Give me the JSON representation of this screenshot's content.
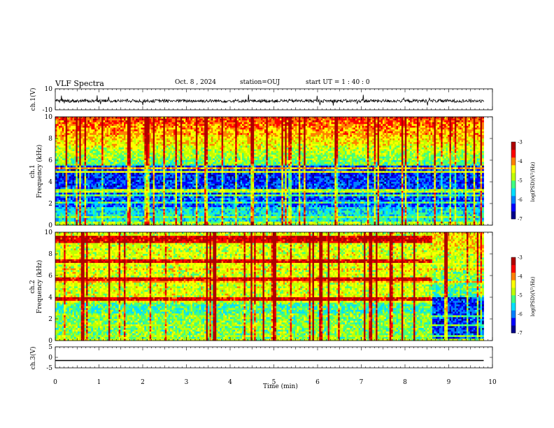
{
  "header": {
    "title": "VLF Spectra",
    "date": "Oct. 8 , 2024",
    "station": "station=OUJ",
    "start": "start UT =  1 : 40 : 0"
  },
  "chart_data": [
    {
      "type": "line",
      "ylabel": "ch.1(V)",
      "xlim": [
        0,
        10
      ],
      "ylim": [
        -10,
        10
      ],
      "yticks": [
        "10",
        "-10"
      ],
      "description_level": -1.5
    },
    {
      "type": "heatmap",
      "ylabel_channel": "ch.1",
      "ylabel": "Frequency (kHz)",
      "xlim": [
        0,
        10
      ],
      "ylim": [
        0,
        10
      ],
      "yticks": [
        "0",
        "2",
        "4",
        "6",
        "8",
        "10"
      ],
      "colorbar": {
        "label": "log(PSD)(V²/Hz)",
        "range": [
          -7,
          -3
        ],
        "ticks": [
          "-3",
          "-4",
          "-5",
          "-6",
          "-7"
        ]
      }
    },
    {
      "type": "heatmap",
      "ylabel_channel": "ch.2",
      "ylabel": "Frequency (kHz)",
      "xlim": [
        0,
        10
      ],
      "ylim": [
        0,
        10
      ],
      "yticks": [
        "0",
        "2",
        "4",
        "6",
        "8",
        "10"
      ],
      "regime_change_at_min": 8.6,
      "colorbar": {
        "label": "log(PSD)(V²/Hz)",
        "range": [
          -7,
          -3
        ],
        "ticks": [
          "-3",
          "-4",
          "-5",
          "-6",
          "-7"
        ]
      }
    },
    {
      "type": "line",
      "ylabel": "ch.3(V)",
      "xlim": [
        0,
        10
      ],
      "ylim": [
        -5,
        5
      ],
      "yticks": [
        "5",
        "0",
        "-5"
      ],
      "constant_value": -1.5
    }
  ],
  "xaxis": {
    "label": "Time (min)",
    "ticks": [
      "0",
      "1",
      "2",
      "3",
      "4",
      "5",
      "6",
      "7",
      "8",
      "9",
      "10"
    ],
    "data_end_min": 9.8
  },
  "colormap": [
    "#00008b",
    "#0000ff",
    "#0080ff",
    "#00e0ff",
    "#40ff80",
    "#c0ff00",
    "#ffff00",
    "#ff8000",
    "#ff0000",
    "#b00000"
  ]
}
